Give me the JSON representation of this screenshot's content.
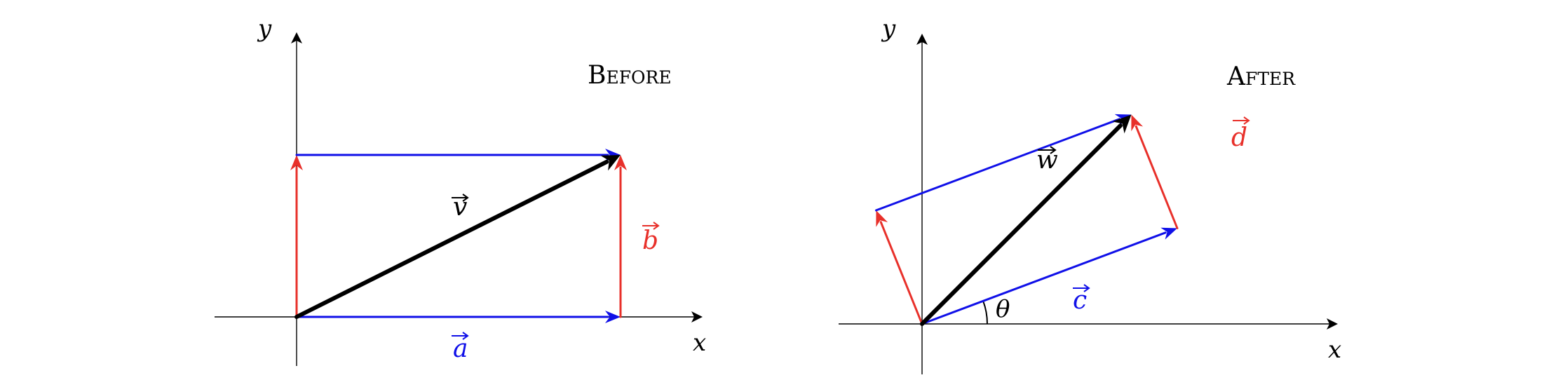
{
  "colors": {
    "blue": "#1010e8",
    "red": "#e8302a",
    "black": "#000000"
  },
  "before": {
    "title": "Before",
    "x_axis_label": "x",
    "y_axis_label": "y",
    "vectors": {
      "a": {
        "label": "a",
        "color": "blue",
        "from": [
          0,
          0
        ],
        "to": [
          2,
          0
        ]
      },
      "b": {
        "label": "b",
        "color": "red",
        "from": [
          2,
          0
        ],
        "to": [
          2,
          1
        ]
      },
      "b_shifted": {
        "color": "red",
        "from": [
          0,
          0
        ],
        "to": [
          0,
          1
        ]
      },
      "a_shifted": {
        "color": "blue",
        "from": [
          0,
          1
        ],
        "to": [
          2,
          1
        ]
      },
      "v": {
        "label": "v",
        "color": "black",
        "from": [
          0,
          0
        ],
        "to": [
          2,
          1
        ]
      }
    }
  },
  "after": {
    "title": "After",
    "x_axis_label": "x",
    "y_axis_label": "y",
    "angle_label": "θ",
    "vectors": {
      "c": {
        "label": "c",
        "color": "blue",
        "from": [
          0,
          0
        ],
        "to": [
          2,
          0.75
        ]
      },
      "d": {
        "label": "d",
        "color": "red",
        "from": [
          2,
          0.75
        ],
        "to": [
          1.64,
          1.64
        ]
      },
      "d_shifted": {
        "color": "red",
        "from": [
          0,
          0
        ],
        "to": [
          -0.36,
          0.89
        ]
      },
      "c_shifted": {
        "color": "blue",
        "from": [
          -0.36,
          0.89
        ],
        "to": [
          1.64,
          1.64
        ]
      },
      "w": {
        "label": "w",
        "color": "black",
        "from": [
          0,
          0
        ],
        "to": [
          1.64,
          1.64
        ]
      }
    }
  }
}
